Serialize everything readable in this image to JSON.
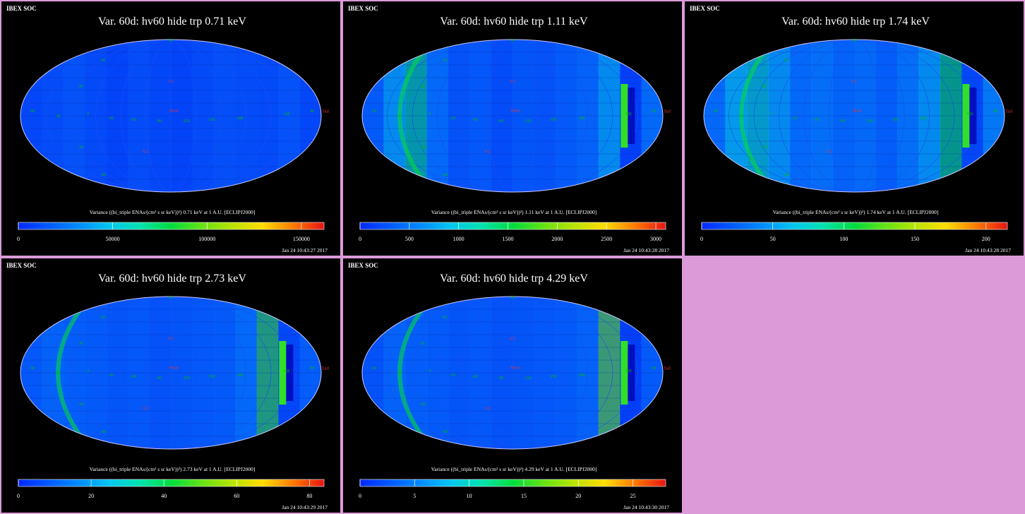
{
  "header_tag": "IBEX SOC",
  "map_labels": {
    "v1": "V1",
    "v2": "V2",
    "nose": "Nose",
    "tail": "Tail",
    "lat_top": "90",
    "lat_60": "60",
    "lat_30": "30",
    "lat_0": "0",
    "lat_m30": "-30",
    "lat_m60": "-60",
    "lon_60": "60",
    "lon_30": "30",
    "lon_m30": "-30",
    "lon_m60": "-60",
    "lon_m90": "-90",
    "lon_m120": "-120",
    "lon_150": "150",
    "lon_180": "180",
    "lon_120": "120",
    "lon_90": "90"
  },
  "panels": [
    {
      "title": "Var. 60d: hv60 hide trp 0.71 keV",
      "colorbar_label": "Variance ((bi_triple ENAs/(cm² s sr keV))²) 0.71 keV at 1 A.U. [ECLIPJ2000]",
      "ticks": [
        "0",
        "50000",
        "100000",
        "150000"
      ],
      "tick_values": [
        0,
        50000,
        100000,
        150000
      ],
      "scale_max": 162000,
      "timestamp": "Jan 24 10:43:27 2017"
    },
    {
      "title": "Var. 60d: hv60 hide trp 1.11 keV",
      "colorbar_label": "Variance ((bi_triple ENAs/(cm² s sr keV))²) 1.11 keV at 1 A.U. [ECLIPJ2000]",
      "ticks": [
        "0",
        "500",
        "1000",
        "1500",
        "2000",
        "2500",
        "3000"
      ],
      "tick_values": [
        0,
        500,
        1000,
        1500,
        2000,
        2500,
        3000
      ],
      "scale_max": 3100,
      "timestamp": "Jan 24 10:43:28 2017"
    },
    {
      "title": "Var. 60d: hv60 hide trp 1.74 keV",
      "colorbar_label": "Variance ((bi_triple ENAs/(cm² s sr keV))²) 1.74 keV at 1 A.U. [ECLIPJ2000]",
      "ticks": [
        "0",
        "50",
        "100",
        "150",
        "200"
      ],
      "tick_values": [
        0,
        50,
        100,
        150,
        200
      ],
      "scale_max": 215,
      "timestamp": "Jan 24 10:43:28 2017"
    },
    {
      "title": "Var. 60d: hv60 hide trp 2.73 keV",
      "colorbar_label": "Variance ((bi_triple ENAs/(cm² s sr keV))²) 2.73 keV at 1 A.U. [ECLIPJ2000]",
      "ticks": [
        "0",
        "20",
        "40",
        "60",
        "80"
      ],
      "tick_values": [
        0,
        20,
        40,
        60,
        80
      ],
      "scale_max": 84,
      "timestamp": "Jan 24 10:43:29 2017"
    },
    {
      "title": "Var. 60d: hv60 hide trp 4.29 keV",
      "colorbar_label": "Variance ((bi_triple ENAs/(cm² s sr keV))²) 4.29 keV at 1 A.U. [ECLIPJ2000]",
      "ticks": [
        "0",
        "5",
        "10",
        "15",
        "20",
        "25"
      ],
      "tick_values": [
        0,
        5,
        10,
        15,
        20,
        25
      ],
      "scale_max": 28,
      "timestamp": "Jan 24 10:43:30 2017"
    }
  ],
  "colors": {
    "background": "#dc9ad8",
    "panel": "#000000",
    "grid_label": "#00bb00",
    "marker": "#ee3333"
  }
}
